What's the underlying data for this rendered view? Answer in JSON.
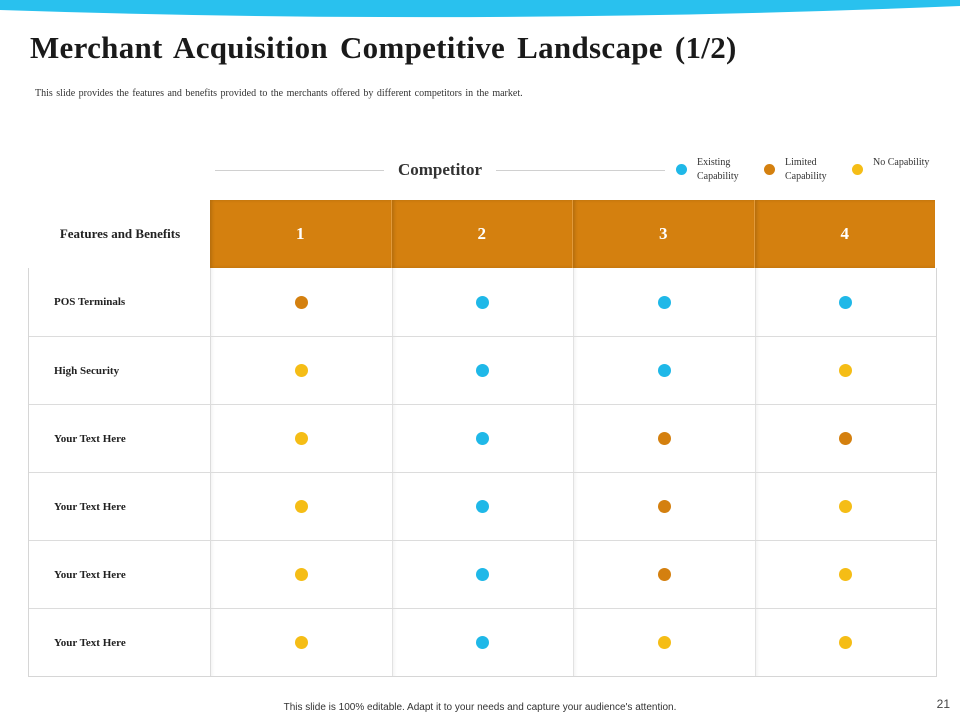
{
  "slide": {
    "title": "Merchant Acquisition Competitive Landscape (1/2)",
    "subtitle": "This slide provides the features and benefits provided to the merchants offered by different competitors in the market.",
    "footer": "This slide is 100% editable. Adapt it to your needs and capture your audience's attention.",
    "page_number": "21"
  },
  "colors": {
    "existing": "#1fb8e8",
    "limited": "#d4800f",
    "none": "#f5bd16",
    "header": "#d4800f",
    "wave": "#29c1ee"
  },
  "competitor_label": "Competitor",
  "legend": [
    {
      "label": "Existing Capability",
      "status": "existing"
    },
    {
      "label": "Limited Capability",
      "status": "limited"
    },
    {
      "label": "No Capability",
      "status": "none"
    }
  ],
  "features_label": "Features and Benefits",
  "competitors": [
    "1",
    "2",
    "3",
    "4"
  ],
  "rows": [
    {
      "feature": "POS Terminals",
      "values": [
        "limited",
        "existing",
        "existing",
        "existing"
      ]
    },
    {
      "feature": "High Security",
      "values": [
        "none",
        "existing",
        "existing",
        "none"
      ]
    },
    {
      "feature": "Your  Text Here",
      "values": [
        "none",
        "existing",
        "limited",
        "limited"
      ]
    },
    {
      "feature": "Your Text Here",
      "values": [
        "none",
        "existing",
        "limited",
        "none"
      ]
    },
    {
      "feature": "Your Text Here",
      "values": [
        "none",
        "existing",
        "limited",
        "none"
      ]
    },
    {
      "feature": "Your  Text Here",
      "values": [
        "none",
        "existing",
        "none",
        "none"
      ]
    }
  ]
}
